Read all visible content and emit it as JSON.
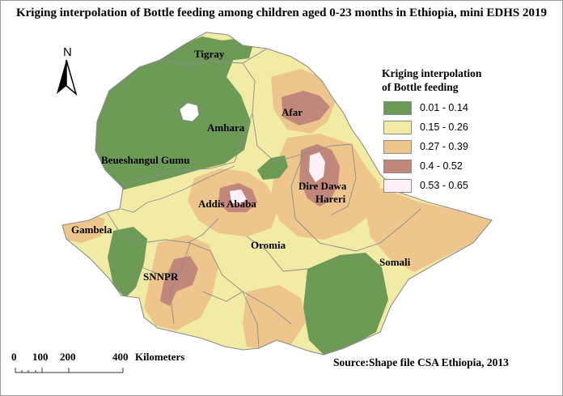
{
  "title": "Kriging interpolation of Bottle feeding among children aged 0-23 months in Ethiopia, mini EDHS 2019",
  "colors": {
    "class1": "#6e9a58",
    "class2": "#f2eba6",
    "class3": "#eec68d",
    "class4": "#c0877a",
    "class5": "#fdf0fb",
    "boundary": "#8c8c8c"
  },
  "regions": [
    {
      "label": "Tigray"
    },
    {
      "label": "Afar"
    },
    {
      "label": "Amhara"
    },
    {
      "label": "Beueshangul Gumu"
    },
    {
      "label": "Dire Dawa"
    },
    {
      "label": "Hareri"
    },
    {
      "label": "Addis Ababa"
    },
    {
      "label": "Gambela"
    },
    {
      "label": "Oromia"
    },
    {
      "label": "Somali"
    },
    {
      "label": "SNNPR"
    }
  ],
  "legend": {
    "title_line1": "Kriging interpolation",
    "title_line2": "of Bottle feeding",
    "items": [
      {
        "label": "0.01 - 0.14"
      },
      {
        "label": "0.15 - 0.26"
      },
      {
        "label": "0.27 - 0.39"
      },
      {
        "label": "0.4 - 0.52"
      },
      {
        "label": "0.53 - 0.65"
      }
    ]
  },
  "north_arrow": {
    "label": "N",
    "icon": "north-arrow-icon"
  },
  "scale_bar": {
    "ticks": [
      "0",
      "100",
      "200",
      "400"
    ],
    "unit": "Kilometers"
  },
  "source": "Source:Shape file CSA Ethiopia, 2013"
}
